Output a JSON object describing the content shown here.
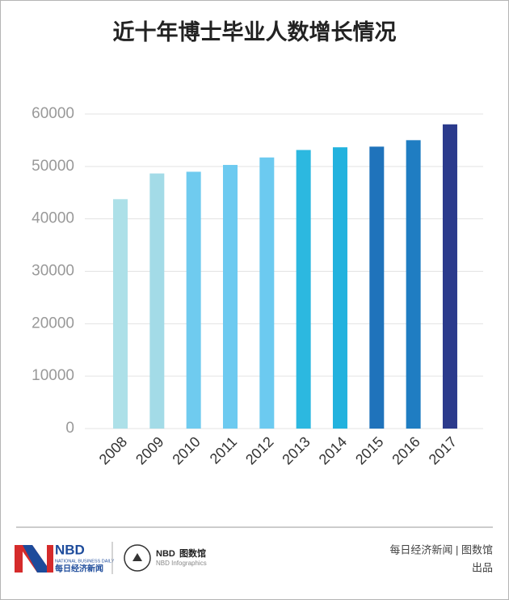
{
  "chart_data": {
    "type": "bar",
    "title": "近十年博士毕业人数增长情况",
    "categories": [
      "2008",
      "2009",
      "2010",
      "2011",
      "2012",
      "2013",
      "2014",
      "2015",
      "2016",
      "2017"
    ],
    "values": [
      43759,
      48658,
      48987,
      50289,
      51713,
      53139,
      53653,
      53778,
      55011,
      58032
    ],
    "colors": [
      "#ade0e8",
      "#a3dbe7",
      "#6fcbef",
      "#6dcaf0",
      "#6ccaf0",
      "#2cb8e0",
      "#22b2de",
      "#1f73bb",
      "#1f7dc2",
      "#2b3a8c"
    ],
    "ylim": [
      0,
      60000
    ],
    "yticks": [
      0,
      10000,
      20000,
      30000,
      40000,
      50000,
      60000
    ],
    "grid": true
  },
  "footer": {
    "logo": "NBD",
    "logo_sub": "NATIONAL BUSINESS DAILY",
    "logo_cn": "每日经济新闻",
    "brand2": "NBD",
    "brand2_cn": "图数馆",
    "brand2_sub": "NBD Infographics",
    "credit": "每日经济新闻 | 图数馆",
    "credit2": "出品"
  }
}
